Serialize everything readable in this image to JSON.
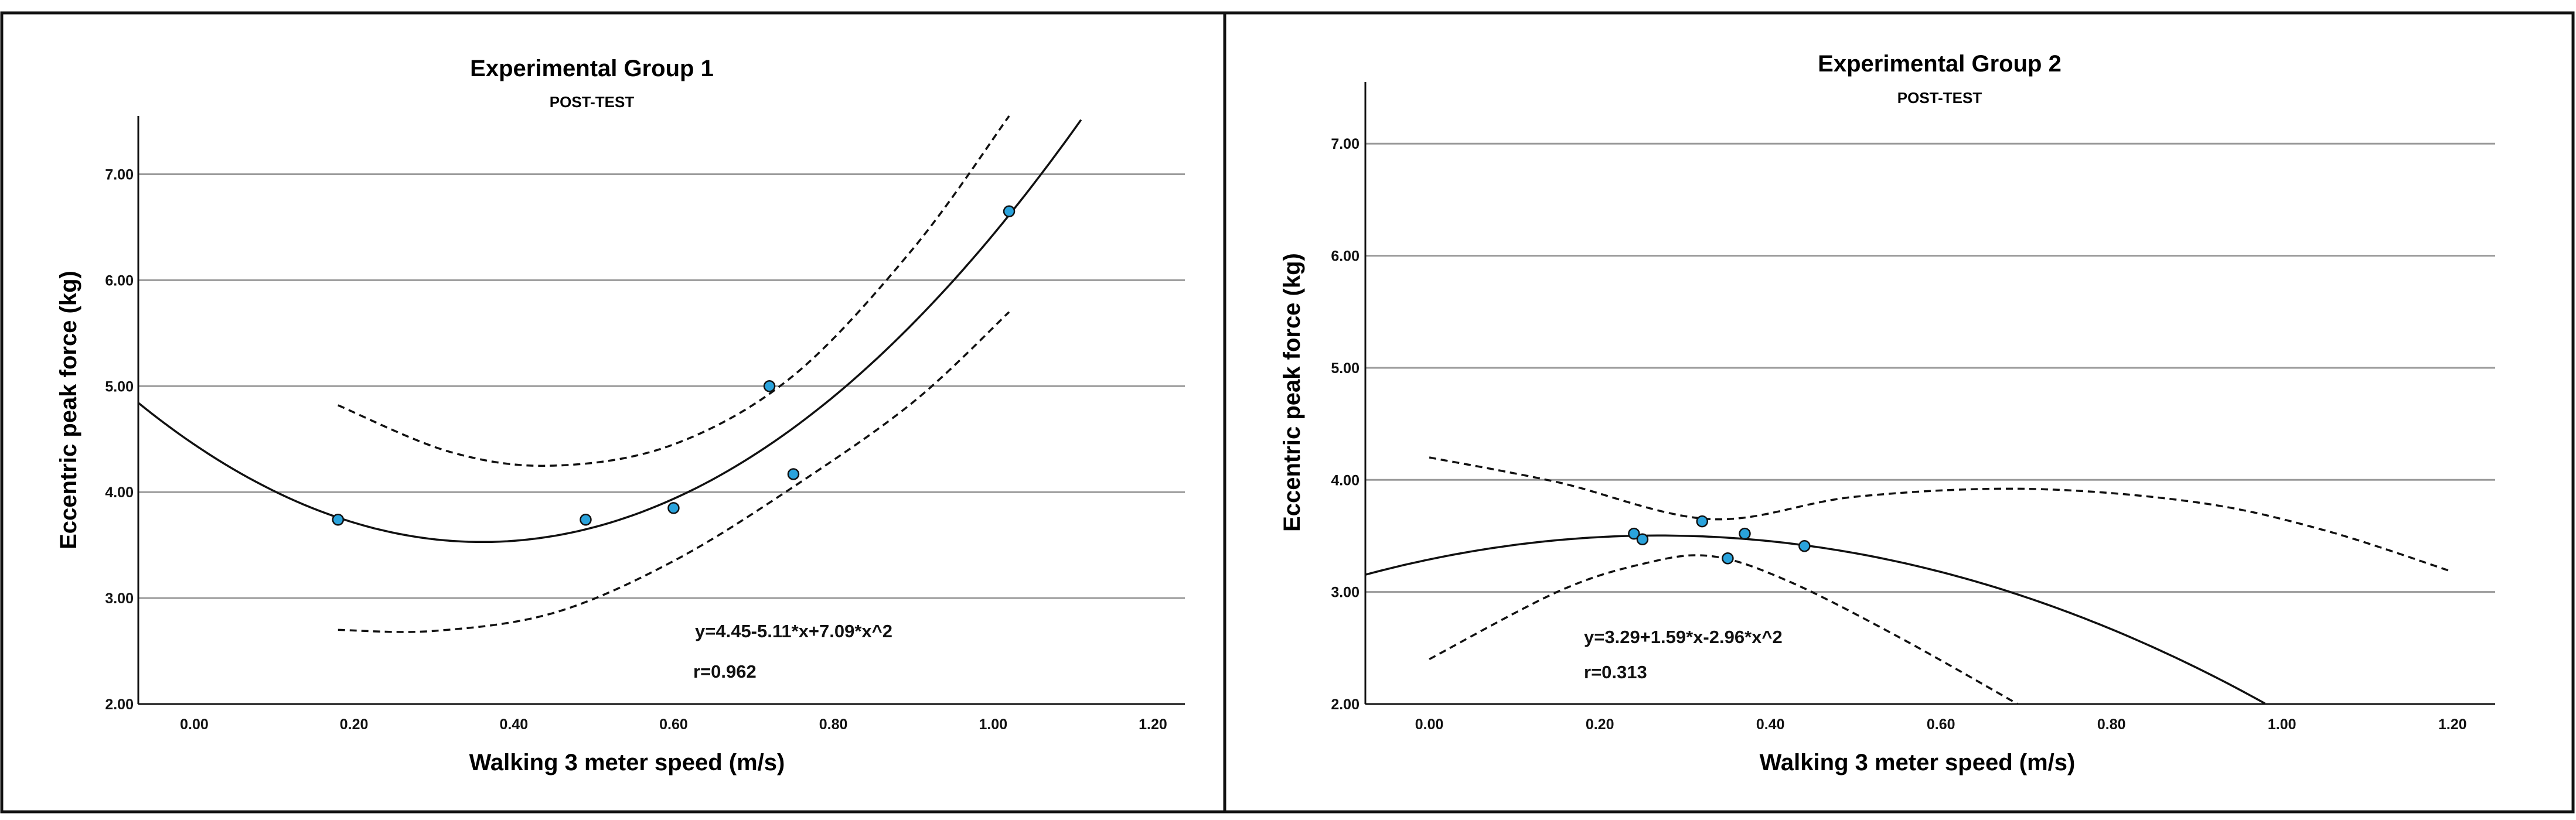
{
  "chart_data": [
    {
      "type": "scatter",
      "title": "Experimental Group 1",
      "subtitle": "POST-TEST",
      "xlabel": "Walking 3 meter speed  (m/s)",
      "ylabel": "Eccentric peak force (kg)",
      "xlim": [
        -0.07,
        1.24
      ],
      "ylim": [
        2.0,
        7.55
      ],
      "xticks": [
        "0.00",
        "0.20",
        "0.40",
        "0.60",
        "0.80",
        "1.00",
        "1.20"
      ],
      "yticks": [
        "2.00",
        "3.00",
        "4.00",
        "5.00",
        "6.00",
        "7.00"
      ],
      "grid": "horizontal",
      "points": [
        {
          "x": 0.18,
          "y": 3.74
        },
        {
          "x": 0.49,
          "y": 3.74
        },
        {
          "x": 0.6,
          "y": 3.85
        },
        {
          "x": 0.72,
          "y": 5.0
        },
        {
          "x": 0.75,
          "y": 4.17
        },
        {
          "x": 1.02,
          "y": 6.65
        }
      ],
      "fit": {
        "type": "quadratic",
        "coef": [
          4.45,
          -5.11,
          7.09
        ],
        "x_range": [
          -0.07,
          1.11
        ]
      },
      "ci_upper": {
        "x": [
          0.18,
          0.32,
          0.45,
          0.6,
          0.75,
          0.9,
          1.02
        ],
        "y": [
          4.82,
          4.38,
          4.25,
          4.45,
          5.1,
          6.3,
          7.55
        ]
      },
      "ci_lower": {
        "x": [
          0.18,
          0.3,
          0.45,
          0.6,
          0.75,
          0.9,
          1.02
        ],
        "y": [
          2.7,
          2.69,
          2.86,
          3.35,
          4.05,
          4.85,
          5.7
        ]
      },
      "equation": "y=4.45-5.11*x+7.09*x^2",
      "r_label": "r=0.962"
    },
    {
      "type": "scatter",
      "title": "Experimental Group 2",
      "subtitle": "POST-TEST",
      "xlabel": "Walking 3 meter speed  (m/s)",
      "ylabel": "Eccentric peak force (kg)",
      "xlim": [
        -0.075,
        1.25
      ],
      "ylim": [
        2.0,
        7.55
      ],
      "xticks": [
        "0.00",
        "0.20",
        "0.40",
        "0.60",
        "0.80",
        "1.00",
        "1.20"
      ],
      "yticks": [
        "2.00",
        "3.00",
        "4.00",
        "5.00",
        "6.00",
        "7.00"
      ],
      "grid": "horizontal",
      "points": [
        {
          "x": 0.24,
          "y": 3.52
        },
        {
          "x": 0.25,
          "y": 3.47
        },
        {
          "x": 0.32,
          "y": 3.63
        },
        {
          "x": 0.35,
          "y": 3.3
        },
        {
          "x": 0.37,
          "y": 3.52
        },
        {
          "x": 0.44,
          "y": 3.41
        }
      ],
      "fit": {
        "type": "quadratic",
        "coef": [
          3.29,
          1.59,
          -2.96
        ],
        "x_range": [
          -0.075,
          0.98
        ]
      },
      "ci_upper": {
        "x": [
          0.0,
          0.15,
          0.33,
          0.5,
          0.7,
          0.9,
          1.05,
          1.2
        ],
        "y": [
          4.2,
          3.98,
          3.65,
          3.85,
          3.92,
          3.8,
          3.55,
          3.18
        ]
      },
      "ci_lower": {
        "x": [
          0.0,
          0.15,
          0.25,
          0.33,
          0.42,
          0.55,
          0.69
        ],
        "y": [
          2.4,
          3.0,
          3.25,
          3.32,
          3.1,
          2.6,
          2.0
        ]
      },
      "equation": "y=3.29+1.59*x-2.96*x^2",
      "r_label": "r=0.313"
    }
  ]
}
